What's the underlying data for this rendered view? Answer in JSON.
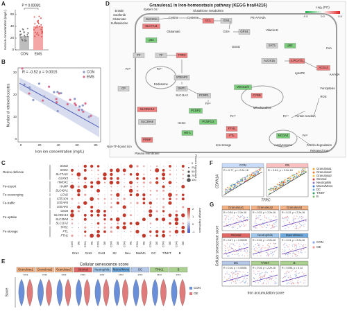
{
  "panels": {
    "A": {
      "label": "A",
      "p": "P = 0.00081",
      "ylabel": "Iron ion concentration (mg/L)",
      "groups": [
        "CON",
        "EMS"
      ],
      "yticks": [
        "0",
        "20",
        "40",
        "60"
      ]
    },
    "B": {
      "label": "B",
      "stat": "R = -0.52 p = 0.0015",
      "ylabel": "Number of retrieved oocytes",
      "xlabel": "Iron ion concentration (mg/L)",
      "legend": [
        "CON",
        "EMS"
      ],
      "xticks": [
        "0",
        "20",
        "40",
        "60",
        "80"
      ],
      "yticks": [
        "0",
        "10",
        "20",
        "30"
      ]
    },
    "C": {
      "label": "C",
      "genes": [
        "SOD2",
        "SOD1",
        "SLC7A11",
        "GLRX3",
        "HMOX1",
        "HAMP",
        "SLC40A1",
        "LCN2",
        "STEAP4",
        "STEAP3",
        "STEAP2",
        "CD44",
        "SLC39A14",
        "SLC39A8",
        "SLC11A2",
        "TFRC",
        "FTL",
        "FTH1"
      ],
      "categories": [
        "Redox defense",
        "Fe-export",
        "Fe-scavenging",
        "Fe-traffic",
        "Fe-uptake",
        "Fe-storage"
      ],
      "clusters": [
        "Gra1",
        "Gra2",
        "Gra3",
        "Str",
        "Neu",
        "Ma/Mo",
        "DC",
        "T/NKT",
        "B"
      ],
      "conditions": [
        "CON",
        "OE"
      ],
      "size_title": "Percent Expressed",
      "size_ticks": [
        "0",
        "25",
        "50",
        "75",
        "100"
      ],
      "color_title": "Average Expression",
      "color_ticks": [
        "2",
        "1",
        "0",
        "-1"
      ]
    },
    "D": {
      "label": "D",
      "title": "Granulosa1 in Iron-homeostasis pathway (KEGG hsa04216)",
      "legend_title": "Log₂ (FC)",
      "legend_ticks": [
        "-0.5",
        "0.0",
        "0.5"
      ],
      "nodes": [
        "Erastin",
        "Sorafenib",
        "Glutamate",
        "Sulfasalazine",
        "System Xc⁻",
        "SLC3A2",
        "SLC7A11",
        "Glutamate",
        "Cystine",
        "Cysteine",
        "Glutathione metabolism",
        "GCL",
        "GSS",
        "GSH",
        "GPX4",
        "GSSG",
        "p53",
        "TF",
        "TF",
        "TFRC",
        "STEAP3",
        "DMT1",
        "SLC11A2",
        "PCBP1",
        "PCBP2",
        "Endosome",
        "CP",
        "SLC39A14",
        "SLC39A8",
        "PRNP",
        "Plasma membrane",
        "Non-TF-bound iron",
        "Heme",
        "HO-1",
        "PCBP1/2",
        "Iron storage",
        "FTH1",
        "FTL",
        "Mitochondrion",
        "VDAC2/3",
        "CYBB",
        "NCOA4",
        "Autolysosome",
        "Ferritin degradation",
        "Released iron",
        "Fenton reaction",
        "Ferroptosis",
        "ROS",
        "SAT1",
        "p53",
        "ALOX15",
        "LPCAT3",
        "ACSL4",
        "Vitamin E",
        "PE-AA/AdA",
        "CoA",
        "AA/AdA",
        "LysoPE",
        "Fe³⁺",
        "Fe²⁺",
        "Fe²⁺",
        "Fe³⁺",
        "Fe²⁺",
        "Fe²⁺"
      ]
    },
    "E": {
      "label": "E",
      "title": "Cellular senescence score",
      "ylabel": "Score",
      "groups": [
        "Granulosa1",
        "Granulosa2",
        "Granulosa3",
        "Stromal",
        "Neutrophils",
        "Macro/Mono",
        "DC",
        "T/NK1",
        "B"
      ],
      "sig": "****",
      "legend": [
        "CON",
        "OE"
      ]
    },
    "F": {
      "label": "F",
      "xlabel": "TFRC",
      "ylabel": "CDKN1A",
      "panels": [
        {
          "name": "CON",
          "stat": "R = 0.77, p < 2.2e-16"
        },
        {
          "name": "OE",
          "stat": "R = 0.81, p < 2.2e-16"
        }
      ],
      "legend": [
        "Granulosa1",
        "Granulosa2",
        "Granulosa3",
        "Stromal",
        "Neutrophils",
        "Macro/Mono",
        "DC",
        "T/NKT",
        "B"
      ]
    },
    "G": {
      "label": "G",
      "xlabel": "Iron accumulation score",
      "ylabel": "Cellular senescence score",
      "legend": [
        "CON",
        "OE"
      ],
      "panels": [
        {
          "name": "Granulosa1",
          "stat": "R = 0.34, p < 2.2e-16"
        },
        {
          "name": "Granulosa2",
          "stat": "R = 0.32, p < 2.2e-16"
        },
        {
          "name": "Granulosa3",
          "stat": "R = 0.22, p < 2.2e-16"
        },
        {
          "name": "Stromal",
          "stat": "R = 0.47, p = 0.00039"
        },
        {
          "name": "Neutrophils",
          "stat": "R = 0.26, p < 2.2e-16"
        },
        {
          "name": "Macro/Mono",
          "stat": "R = 0.21, p < 2.2e-16"
        },
        {
          "name": "DC",
          "stat": "R = 0.16, p = 0.00051"
        },
        {
          "name": "T/NKT",
          "stat": "R = 0.16, p < 2.2e-16"
        },
        {
          "name": "B",
          "stat": "R = 0.094, p = 0.14"
        }
      ]
    }
  }
}
